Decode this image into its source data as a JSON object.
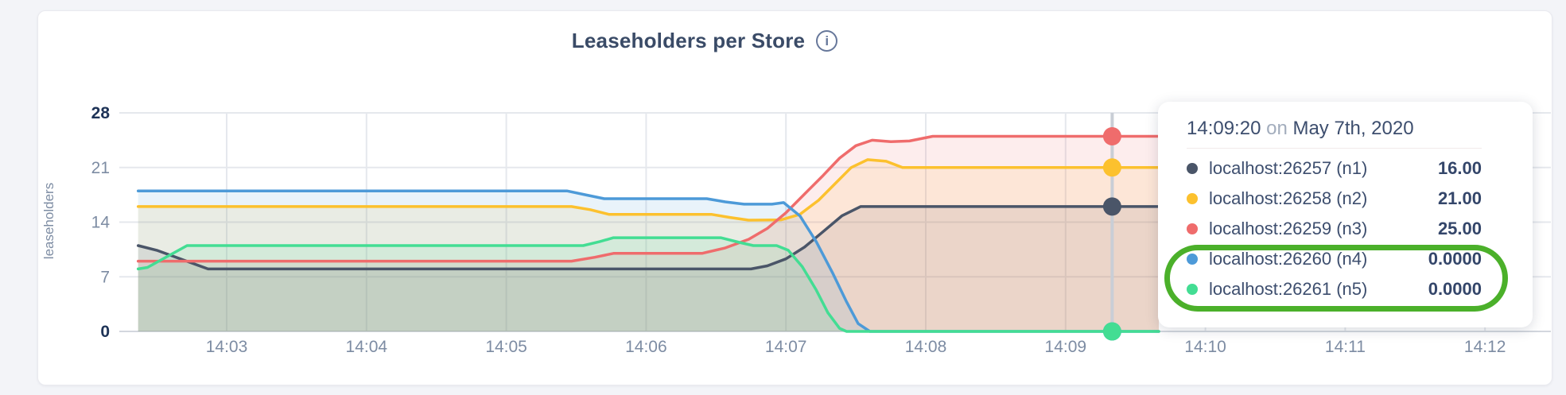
{
  "page": {
    "background": "#f3f4f8",
    "card_background": "#ffffff"
  },
  "header": {
    "title": "Leaseholders per Store",
    "info_glyph": "i"
  },
  "tooltip": {
    "time": "14:09:20",
    "on_word": "on",
    "date": "May 7th, 2020",
    "rows": [
      {
        "name": "localhost:26257 (n1)",
        "value": "16.00",
        "color": "#4a5568"
      },
      {
        "name": "localhost:26258 (n2)",
        "value": "21.00",
        "color": "#fcc12e"
      },
      {
        "name": "localhost:26259 (n3)",
        "value": "25.00",
        "color": "#ef6c6c"
      },
      {
        "name": "localhost:26260 (n4)",
        "value": "0.0000",
        "color": "#4d9ad8"
      },
      {
        "name": "localhost:26261 (n5)",
        "value": "0.0000",
        "color": "#43dd93"
      }
    ]
  },
  "annotation": {
    "shape": "green-ellipse-highlight",
    "color": "#4bb02a",
    "highlights": [
      "localhost:26260 (n4)",
      "localhost:26261 (n5)"
    ]
  },
  "chart_data": {
    "type": "area",
    "title": "Leaseholders per Store",
    "xlabel": "",
    "ylabel": "leaseholders",
    "x_ticks": [
      "14:03",
      "14:04",
      "14:05",
      "14:06",
      "14:07",
      "14:08",
      "14:09",
      "14:10",
      "14:11",
      "14:12"
    ],
    "y_ticks": [
      0,
      7,
      14,
      21,
      28
    ],
    "ylim": [
      0,
      28
    ],
    "x_domain": [
      "14:02:22",
      "14:12:28"
    ],
    "grid": true,
    "legend_position": "tooltip",
    "hover_time": "14:09:20",
    "hover_date": "May 7th, 2020",
    "series": [
      {
        "name": "localhost:26257 (n1)",
        "color": "#4a5568",
        "hover_value": 16,
        "points": [
          [
            "14:02:22",
            11
          ],
          [
            "14:02:30",
            10.4
          ],
          [
            "14:02:52",
            8
          ],
          [
            "14:06:45",
            8
          ],
          [
            "14:06:52",
            8.4
          ],
          [
            "14:07:00",
            9.3
          ],
          [
            "14:07:08",
            10.8
          ],
          [
            "14:07:16",
            12.8
          ],
          [
            "14:07:24",
            14.8
          ],
          [
            "14:07:32",
            16
          ],
          [
            "14:09:40",
            16
          ]
        ]
      },
      {
        "name": "localhost:26258 (n2)",
        "color": "#fcc12e",
        "hover_value": 21,
        "points": [
          [
            "14:02:22",
            16
          ],
          [
            "14:05:28",
            16
          ],
          [
            "14:05:36",
            15.6
          ],
          [
            "14:05:44",
            15
          ],
          [
            "14:06:28",
            15
          ],
          [
            "14:06:36",
            14.6
          ],
          [
            "14:06:44",
            14.25
          ],
          [
            "14:06:58",
            14.3
          ],
          [
            "14:07:06",
            15
          ],
          [
            "14:07:14",
            16.8
          ],
          [
            "14:07:22",
            19.2
          ],
          [
            "14:07:28",
            21
          ],
          [
            "14:07:35",
            22
          ],
          [
            "14:07:43",
            21.8
          ],
          [
            "14:07:50",
            21
          ],
          [
            "14:09:40",
            21
          ]
        ]
      },
      {
        "name": "localhost:26259 (n3)",
        "color": "#ef6c6c",
        "hover_value": 25,
        "points": [
          [
            "14:02:22",
            9
          ],
          [
            "14:05:28",
            9
          ],
          [
            "14:05:38",
            9.5
          ],
          [
            "14:05:46",
            10
          ],
          [
            "14:06:24",
            10
          ],
          [
            "14:06:34",
            10.7
          ],
          [
            "14:06:44",
            11.8
          ],
          [
            "14:06:52",
            13.2
          ],
          [
            "14:07:00",
            15.2
          ],
          [
            "14:07:08",
            17.6
          ],
          [
            "14:07:16",
            20
          ],
          [
            "14:07:23",
            22.2
          ],
          [
            "14:07:30",
            23.8
          ],
          [
            "14:07:37",
            24.5
          ],
          [
            "14:07:45",
            24.3
          ],
          [
            "14:07:53",
            24.4
          ],
          [
            "14:08:03",
            25
          ],
          [
            "14:09:40",
            25
          ]
        ]
      },
      {
        "name": "localhost:26260 (n4)",
        "color": "#4d9ad8",
        "hover_value": 0,
        "points": [
          [
            "14:02:22",
            18
          ],
          [
            "14:05:26",
            18
          ],
          [
            "14:05:34",
            17.5
          ],
          [
            "14:05:42",
            17
          ],
          [
            "14:06:26",
            17
          ],
          [
            "14:06:34",
            16.6
          ],
          [
            "14:06:42",
            16.3
          ],
          [
            "14:06:54",
            16.3
          ],
          [
            "14:06:59",
            16.5
          ],
          [
            "14:07:06",
            14.8
          ],
          [
            "14:07:13",
            11.5
          ],
          [
            "14:07:20",
            7.5
          ],
          [
            "14:07:26",
            3.8
          ],
          [
            "14:07:31",
            1
          ],
          [
            "14:07:36",
            0
          ],
          [
            "14:09:40",
            0
          ]
        ]
      },
      {
        "name": "localhost:26261 (n5)",
        "color": "#43dd93",
        "hover_value": 0,
        "points": [
          [
            "14:02:22",
            8
          ],
          [
            "14:02:26",
            8.2
          ],
          [
            "14:02:43",
            11
          ],
          [
            "14:05:33",
            11
          ],
          [
            "14:05:40",
            11.5
          ],
          [
            "14:05:46",
            12
          ],
          [
            "14:06:32",
            12
          ],
          [
            "14:06:40",
            11.4
          ],
          [
            "14:06:46",
            11
          ],
          [
            "14:06:56",
            11
          ],
          [
            "14:07:01",
            10.4
          ],
          [
            "14:07:07",
            8.3
          ],
          [
            "14:07:13",
            5.3
          ],
          [
            "14:07:18",
            2.4
          ],
          [
            "14:07:23",
            0.4
          ],
          [
            "14:07:26",
            0
          ],
          [
            "14:09:40",
            0
          ]
        ]
      }
    ]
  }
}
